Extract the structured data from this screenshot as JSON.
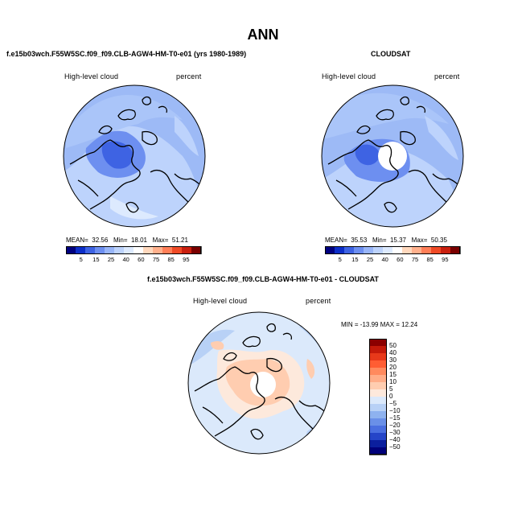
{
  "page": {
    "title": "ANN"
  },
  "panels": [
    {
      "title": "f.e15b03wch.F55W5SC.f09_f09.CLB-AGW4-HM-T0-e01 (yrs 1980-1989)",
      "left_label": "High-level cloud",
      "right_label": "percent",
      "stats": {
        "mean_label": "MEAN=",
        "mean": "32.56",
        "min_label": "Min=",
        "min": "18.01",
        "max_label": "Max=",
        "max": "51.21"
      }
    },
    {
      "title": "CLOUDSAT",
      "left_label": "High-level cloud",
      "right_label": "percent",
      "stats": {
        "mean_label": "MEAN=",
        "mean": "35.53",
        "min_label": "Min=",
        "min": "15.37",
        "max_label": "Max=",
        "max": "50.35"
      }
    },
    {
      "title": "f.e15b03wch.F55W5SC.f09_f09.CLB-AGW4-HM-T0-e01 - CLOUDSAT",
      "left_label": "High-level cloud",
      "right_label": "percent",
      "stats_line": "MIN = -13.99 MAX =  12.24"
    }
  ],
  "chart_data": [
    {
      "type": "heatmap",
      "title": "f.e15b03wch.F55W5SC.f09_f09.CLB-AGW4-HM-T0-e01 (yrs 1980-1989)",
      "variable": "High-level cloud",
      "units": "percent",
      "projection": "north polar stereographic",
      "mean": 32.56,
      "min": 18.01,
      "max": 51.21,
      "colorbar_levels": [
        5,
        15,
        25,
        40,
        60,
        75,
        85,
        95
      ],
      "colorbar_colors": [
        "#00007f",
        "#0c2ec8",
        "#3e63e3",
        "#6d8ff0",
        "#98b5f8",
        "#bdd3fc",
        "#ddeafe",
        "#ffffff",
        "#ffd8bd",
        "#ffb08c",
        "#ff7f58",
        "#ef4a26",
        "#c9200f",
        "#7a0000"
      ]
    },
    {
      "type": "heatmap",
      "title": "CLOUDSAT",
      "variable": "High-level cloud",
      "units": "percent",
      "projection": "north polar stereographic",
      "mean": 35.53,
      "min": 15.37,
      "max": 50.35,
      "colorbar_levels": [
        5,
        15,
        25,
        40,
        60,
        75,
        85,
        95
      ],
      "colorbar_colors": [
        "#00007f",
        "#0c2ec8",
        "#3e63e3",
        "#6d8ff0",
        "#98b5f8",
        "#bdd3fc",
        "#ddeafe",
        "#ffffff",
        "#ffd8bd",
        "#ffb08c",
        "#ff7f58",
        "#ef4a26",
        "#c9200f",
        "#7a0000"
      ]
    },
    {
      "type": "heatmap",
      "title": "f.e15b03wch.F55W5SC.f09_f09.CLB-AGW4-HM-T0-e01 - CLOUDSAT",
      "variable": "High-level cloud",
      "units": "percent",
      "projection": "north polar stereographic",
      "min": -13.99,
      "max": 12.24,
      "colorbar_levels": [
        50,
        40,
        30,
        20,
        15,
        10,
        5,
        0,
        -5,
        -10,
        -15,
        -20,
        -30,
        -40,
        -50
      ],
      "colorbar_colors": [
        "#8b0000",
        "#c41a0a",
        "#e8391a",
        "#ff5d33",
        "#ff8a5e",
        "#ffad88",
        "#ffcdb0",
        "#fde9dc",
        "#dbe9fb",
        "#b8d1f6",
        "#8eb2ef",
        "#6a90e8",
        "#4a6fe0",
        "#2545c8",
        "#0b1f9e",
        "#00007a"
      ],
      "legend_position": "right"
    }
  ]
}
